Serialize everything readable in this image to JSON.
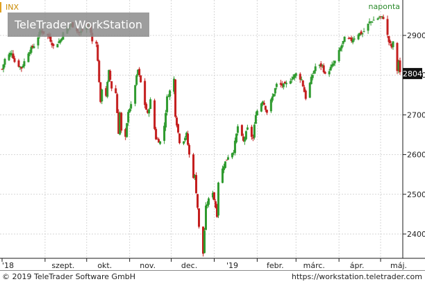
{
  "header": {
    "symbol": "INX",
    "period": "naponta",
    "watermark": "TeleTrader WorkStation",
    "last_price": "2804"
  },
  "footer": {
    "copyright": "© 2019 TeleTrader Software GmbH",
    "url": "https://workstation.teletrader.com"
  },
  "colors": {
    "up": "#2e9a2e",
    "down": "#c41e1e",
    "last_badge_bg": "#111111",
    "grid": "#d6d6d6",
    "symbol": "#c98a00",
    "period": "#2a8a2a"
  },
  "chart_data": {
    "type": "candlestick",
    "x_start": "2018-08-01",
    "x_end": "2019-05-15",
    "x_tick_labels": [
      {
        "label": "'18",
        "date": "2018-08-01"
      },
      {
        "label": "szept.",
        "date": "2018-09-01"
      },
      {
        "label": "okt.",
        "date": "2018-10-01"
      },
      {
        "label": "nov.",
        "date": "2018-11-01"
      },
      {
        "label": "dec.",
        "date": "2018-12-01"
      },
      {
        "label": "'19",
        "date": "2019-01-01"
      },
      {
        "label": "febr.",
        "date": "2019-02-01"
      },
      {
        "label": "márc.",
        "date": "2019-03-01"
      },
      {
        "label": "ápr.",
        "date": "2019-04-01"
      },
      {
        "label": "máj.",
        "date": "2019-05-01"
      }
    ],
    "y_ticks": [
      2400,
      2500,
      2600,
      2700,
      2800,
      2900
    ],
    "ylim": [
      2340,
      2955
    ],
    "grid": true,
    "last_value": 2804,
    "close_path": [
      [
        "2018-08-01",
        2815
      ],
      [
        "2018-08-03",
        2840
      ],
      [
        "2018-08-08",
        2858
      ],
      [
        "2018-08-10",
        2834
      ],
      [
        "2018-08-15",
        2818
      ],
      [
        "2018-08-20",
        2858
      ],
      [
        "2018-08-24",
        2875
      ],
      [
        "2018-08-29",
        2912
      ],
      [
        "2018-09-04",
        2896
      ],
      [
        "2018-09-07",
        2872
      ],
      [
        "2018-09-12",
        2888
      ],
      [
        "2018-09-14",
        2905
      ],
      [
        "2018-09-20",
        2928
      ],
      [
        "2018-09-26",
        2906
      ],
      [
        "2018-10-01",
        2924
      ],
      [
        "2018-10-03",
        2926
      ],
      [
        "2018-10-05",
        2885
      ],
      [
        "2018-10-08",
        2884
      ],
      [
        "2018-10-10",
        2785
      ],
      [
        "2018-10-11",
        2728
      ],
      [
        "2018-10-12",
        2767
      ],
      [
        "2018-10-15",
        2750
      ],
      [
        "2018-10-17",
        2809
      ],
      [
        "2018-10-19",
        2768
      ],
      [
        "2018-10-22",
        2755
      ],
      [
        "2018-10-24",
        2656
      ],
      [
        "2018-10-25",
        2705
      ],
      [
        "2018-10-26",
        2658
      ],
      [
        "2018-10-29",
        2641
      ],
      [
        "2018-10-31",
        2711
      ],
      [
        "2018-11-02",
        2723
      ],
      [
        "2018-11-07",
        2813
      ],
      [
        "2018-11-09",
        2781
      ],
      [
        "2018-11-12",
        2726
      ],
      [
        "2018-11-14",
        2701
      ],
      [
        "2018-11-16",
        2736
      ],
      [
        "2018-11-20",
        2641
      ],
      [
        "2018-11-23",
        2632
      ],
      [
        "2018-11-26",
        2673
      ],
      [
        "2018-11-28",
        2743
      ],
      [
        "2018-11-30",
        2760
      ],
      [
        "2018-12-03",
        2790
      ],
      [
        "2018-12-04",
        2700
      ],
      [
        "2018-12-07",
        2633
      ],
      [
        "2018-12-10",
        2637
      ],
      [
        "2018-12-12",
        2651
      ],
      [
        "2018-12-14",
        2599
      ],
      [
        "2018-12-17",
        2545
      ],
      [
        "2018-12-18",
        2546
      ],
      [
        "2018-12-20",
        2467
      ],
      [
        "2018-12-21",
        2416
      ],
      [
        "2018-12-24",
        2351
      ],
      [
        "2018-12-26",
        2467
      ],
      [
        "2018-12-28",
        2486
      ],
      [
        "2018-12-31",
        2507
      ],
      [
        "2019-01-03",
        2448
      ],
      [
        "2019-01-04",
        2532
      ],
      [
        "2019-01-08",
        2574
      ],
      [
        "2019-01-11",
        2596
      ],
      [
        "2019-01-15",
        2610
      ],
      [
        "2019-01-18",
        2671
      ],
      [
        "2019-01-22",
        2633
      ],
      [
        "2019-01-25",
        2665
      ],
      [
        "2019-01-29",
        2640
      ],
      [
        "2019-01-31",
        2704
      ],
      [
        "2019-02-05",
        2737
      ],
      [
        "2019-02-08",
        2707
      ],
      [
        "2019-02-12",
        2745
      ],
      [
        "2019-02-15",
        2776
      ],
      [
        "2019-02-21",
        2774
      ],
      [
        "2019-02-26",
        2793
      ],
      [
        "2019-03-01",
        2803
      ],
      [
        "2019-03-05",
        2789
      ],
      [
        "2019-03-08",
        2743
      ],
      [
        "2019-03-12",
        2791
      ],
      [
        "2019-03-15",
        2822
      ],
      [
        "2019-03-20",
        2824
      ],
      [
        "2019-03-22",
        2800
      ],
      [
        "2019-03-26",
        2818
      ],
      [
        "2019-03-29",
        2834
      ],
      [
        "2019-04-02",
        2867
      ],
      [
        "2019-04-05",
        2892
      ],
      [
        "2019-04-10",
        2888
      ],
      [
        "2019-04-15",
        2905
      ],
      [
        "2019-04-18",
        2905
      ],
      [
        "2019-04-23",
        2933
      ],
      [
        "2019-04-26",
        2939
      ],
      [
        "2019-04-30",
        2945
      ],
      [
        "2019-05-03",
        2945
      ],
      [
        "2019-05-07",
        2884
      ],
      [
        "2019-05-09",
        2870
      ],
      [
        "2019-05-10",
        2881
      ],
      [
        "2019-05-13",
        2812
      ],
      [
        "2019-05-14",
        2834
      ],
      [
        "2019-05-15",
        2804
      ]
    ]
  }
}
